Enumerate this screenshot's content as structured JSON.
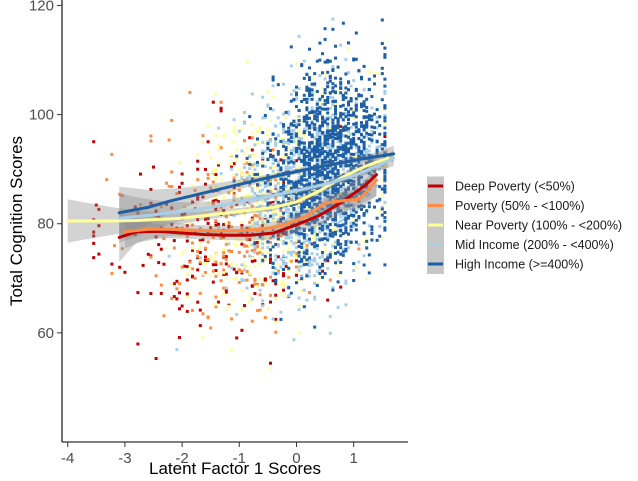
{
  "chart_data": {
    "type": "scatter",
    "title": "",
    "xlabel": "Latent Factor 1 Scores",
    "ylabel": "Total Cognition Scores",
    "xlim": [
      -4.1,
      1.95
    ],
    "ylim": [
      40,
      121
    ],
    "x_ticks": [
      -4,
      -3,
      -2,
      -1,
      0,
      1
    ],
    "x_tick_labels": [
      "-4",
      "-3",
      "-2",
      "-1",
      "0",
      "1"
    ],
    "y_ticks": [
      60,
      80,
      100,
      120
    ],
    "y_tick_labels": [
      "60",
      "80",
      "100",
      "120"
    ],
    "grid": false,
    "legend_position": "right",
    "note": "",
    "series": [
      {
        "name": "Deep Poverty (<50%)",
        "color": "#c00000",
        "smooth_x": [
          -3.1,
          -2.8,
          -2.4,
          -2.0,
          -1.6,
          -1.2,
          -0.8,
          -0.4,
          0.0,
          0.4,
          0.8,
          1.2,
          1.4
        ],
        "smooth_y": [
          77.5,
          78.5,
          78.6,
          78.3,
          78.0,
          77.9,
          77.9,
          78.3,
          79.8,
          81.5,
          84.0,
          87.0,
          89.0
        ],
        "ci_half_width": [
          4.5,
          2.0,
          1.3,
          1.0,
          0.9,
          0.9,
          1.0,
          1.2,
          1.5,
          1.8,
          2.2,
          3.0,
          4.0
        ]
      },
      {
        "name": "Poverty (50% - <100%)",
        "color": "#ff8c42",
        "smooth_x": [
          -3.0,
          -2.6,
          -2.2,
          -1.8,
          -1.4,
          -1.0,
          -0.6,
          -0.2,
          0.2,
          0.5,
          0.8,
          1.1,
          1.4
        ],
        "smooth_y": [
          78.5,
          79.0,
          79.0,
          78.8,
          78.7,
          78.7,
          79.0,
          79.8,
          81.5,
          83.8,
          84.2,
          84.5,
          88.0
        ],
        "ci_half_width": [
          3.0,
          1.8,
          1.3,
          1.0,
          0.9,
          0.9,
          1.0,
          1.1,
          1.2,
          1.4,
          1.6,
          2.0,
          2.8
        ]
      },
      {
        "name": "Near Poverty (100% - <200%)",
        "color": "#ffff99",
        "smooth_x": [
          -4.0,
          -3.6,
          -3.2,
          -2.8,
          -2.4,
          -2.0,
          -1.6,
          -1.2,
          -0.8,
          -0.4,
          0.0,
          0.4,
          0.8,
          1.2,
          1.6
        ],
        "smooth_y": [
          80.5,
          80.5,
          80.5,
          80.6,
          80.8,
          81.0,
          81.5,
          82.0,
          82.5,
          83.0,
          84.0,
          86.0,
          88.5,
          90.5,
          92.0
        ],
        "ci_half_width": [
          4.0,
          3.2,
          2.5,
          1.8,
          1.3,
          1.0,
          0.8,
          0.7,
          0.6,
          0.6,
          0.6,
          0.7,
          0.8,
          1.2,
          1.8
        ]
      },
      {
        "name": "Mid Income (200% - <400%)",
        "color": "#a8cfe8",
        "smooth_x": [
          -3.1,
          -2.6,
          -2.2,
          -1.8,
          -1.4,
          -1.0,
          -0.6,
          -0.2,
          0.2,
          0.6,
          1.0,
          1.4,
          1.7
        ],
        "smooth_y": [
          81.0,
          81.5,
          82.0,
          82.5,
          83.2,
          84.0,
          84.8,
          85.6,
          86.5,
          87.5,
          88.8,
          90.5,
          92.0
        ],
        "ci_half_width": [
          4.5,
          3.0,
          2.0,
          1.4,
          1.0,
          0.8,
          0.6,
          0.5,
          0.5,
          0.5,
          0.6,
          0.8,
          1.5
        ]
      },
      {
        "name": "High Income (>=400%)",
        "color": "#1f5fa6",
        "smooth_x": [
          -3.1,
          -2.6,
          -2.2,
          -1.8,
          -1.4,
          -1.0,
          -0.6,
          -0.2,
          0.2,
          0.6,
          1.0,
          1.4,
          1.7
        ],
        "smooth_y": [
          82.0,
          83.0,
          84.2,
          85.2,
          86.2,
          87.2,
          88.2,
          89.1,
          90.0,
          90.8,
          91.6,
          92.3,
          92.8
        ],
        "ci_half_width": [
          4.8,
          3.2,
          2.2,
          1.6,
          1.2,
          0.9,
          0.6,
          0.5,
          0.4,
          0.4,
          0.5,
          0.8,
          1.5
        ]
      }
    ]
  }
}
